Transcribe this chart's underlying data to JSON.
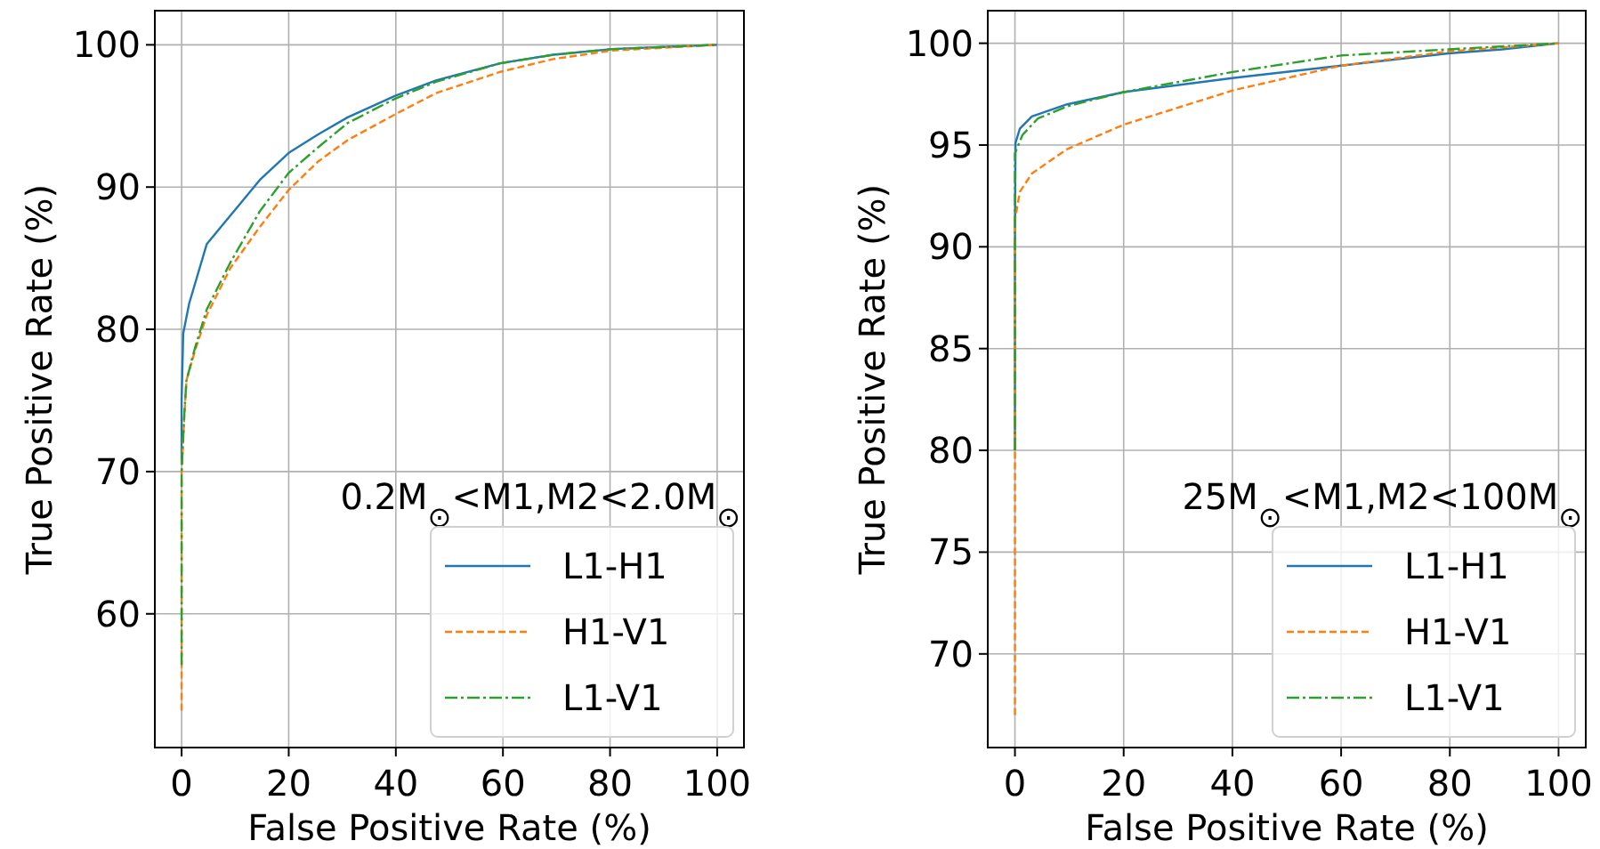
{
  "chart_data": [
    {
      "type": "line",
      "xlabel": "False Positive Rate (%)",
      "ylabel": "True Positive Rate (%)",
      "annotations": [
        "0.2M$_{⊙}$<M1,M2<2.0M$_{⊙}$"
      ],
      "xlim": [
        -5,
        105
      ],
      "ylim": [
        50.6,
        102.4
      ],
      "xticks": [
        0,
        20,
        40,
        60,
        80,
        100
      ],
      "yticks": [
        60,
        70,
        80,
        90,
        100
      ],
      "grid": true,
      "legend": "bottom right",
      "series": [
        {
          "name": "L1-H1",
          "color": "#1f77b4",
          "line_style": "solid",
          "x": [
            0,
            0,
            0.3,
            1.4,
            4.7,
            9.1,
            14.6,
            20,
            25.5,
            31,
            39.8,
            47.5,
            59.5,
            69.4,
            80.4,
            100
          ],
          "values": [
            70.5,
            75,
            79.7,
            81.8,
            86,
            88,
            90.5,
            92.4,
            93.7,
            94.9,
            96.4,
            97.5,
            98.7,
            99.3,
            99.7,
            100
          ]
        },
        {
          "name": "H1-V1",
          "color": "#ff7f0e",
          "line_style": "dashed",
          "x": [
            0,
            0,
            0.5,
            0.9,
            2.5,
            4.7,
            9.1,
            14.6,
            20,
            25.5,
            31,
            39.8,
            47.5,
            59.5,
            69.4,
            80.4,
            100
          ],
          "values": [
            53.2,
            70,
            73.9,
            76.4,
            78.5,
            81,
            84.3,
            87.2,
            89.8,
            91.8,
            93.3,
            95.1,
            96.6,
            98.1,
            99,
            99.6,
            100
          ]
        },
        {
          "name": "L1-V1",
          "color": "#2ca02c",
          "line_style": "dashdot",
          "x": [
            0,
            0,
            0.5,
            0.9,
            2.5,
            4.7,
            9.1,
            14.6,
            20,
            25.5,
            31,
            39.8,
            47.5,
            59.5,
            69.4,
            80.4,
            100
          ],
          "values": [
            56.4,
            70,
            74,
            76.4,
            78.7,
            81.4,
            84.7,
            88.3,
            91,
            92.8,
            94.5,
            96.2,
            97.4,
            98.7,
            99.3,
            99.7,
            100
          ]
        }
      ]
    },
    {
      "type": "line",
      "xlabel": "False Positive Rate (%)",
      "ylabel": "True Positive Rate (%)",
      "annotations": [
        "25M$_{⊙}$<M1,M2<100M$_{⊙}$"
      ],
      "xlim": [
        -5,
        105
      ],
      "ylim": [
        65.4,
        101.6
      ],
      "xticks": [
        0,
        20,
        40,
        60,
        80,
        100
      ],
      "yticks": [
        70,
        75,
        80,
        85,
        90,
        95,
        100
      ],
      "grid": true,
      "legend": "bottom right",
      "series": [
        {
          "name": "L1-H1",
          "color": "#1f77b4",
          "line_style": "solid",
          "x": [
            0,
            0,
            0.1,
            0.9,
            3.1,
            9.6,
            20,
            40.3,
            60,
            79.7,
            89.6,
            100
          ],
          "values": [
            80,
            90,
            95.1,
            95.8,
            96.4,
            97,
            97.6,
            98.3,
            98.9,
            99.5,
            99.7,
            100
          ]
        },
        {
          "name": "H1-V1",
          "color": "#ff7f0e",
          "line_style": "dashed",
          "x": [
            0,
            0,
            0.9,
            3.1,
            9.6,
            20,
            40.3,
            60,
            79.7,
            100
          ],
          "values": [
            67,
            91.3,
            92.7,
            93.6,
            94.8,
            96,
            97.7,
            98.9,
            99.6,
            100
          ]
        },
        {
          "name": "L1-V1",
          "color": "#2ca02c",
          "line_style": "dashdot",
          "x": [
            0,
            0,
            1.4,
            4.2,
            9.6,
            20,
            40.3,
            60,
            79.7,
            100
          ],
          "values": [
            80,
            94.6,
            95.5,
            96.3,
            96.9,
            97.6,
            98.6,
            99.4,
            99.7,
            100
          ]
        }
      ]
    }
  ]
}
